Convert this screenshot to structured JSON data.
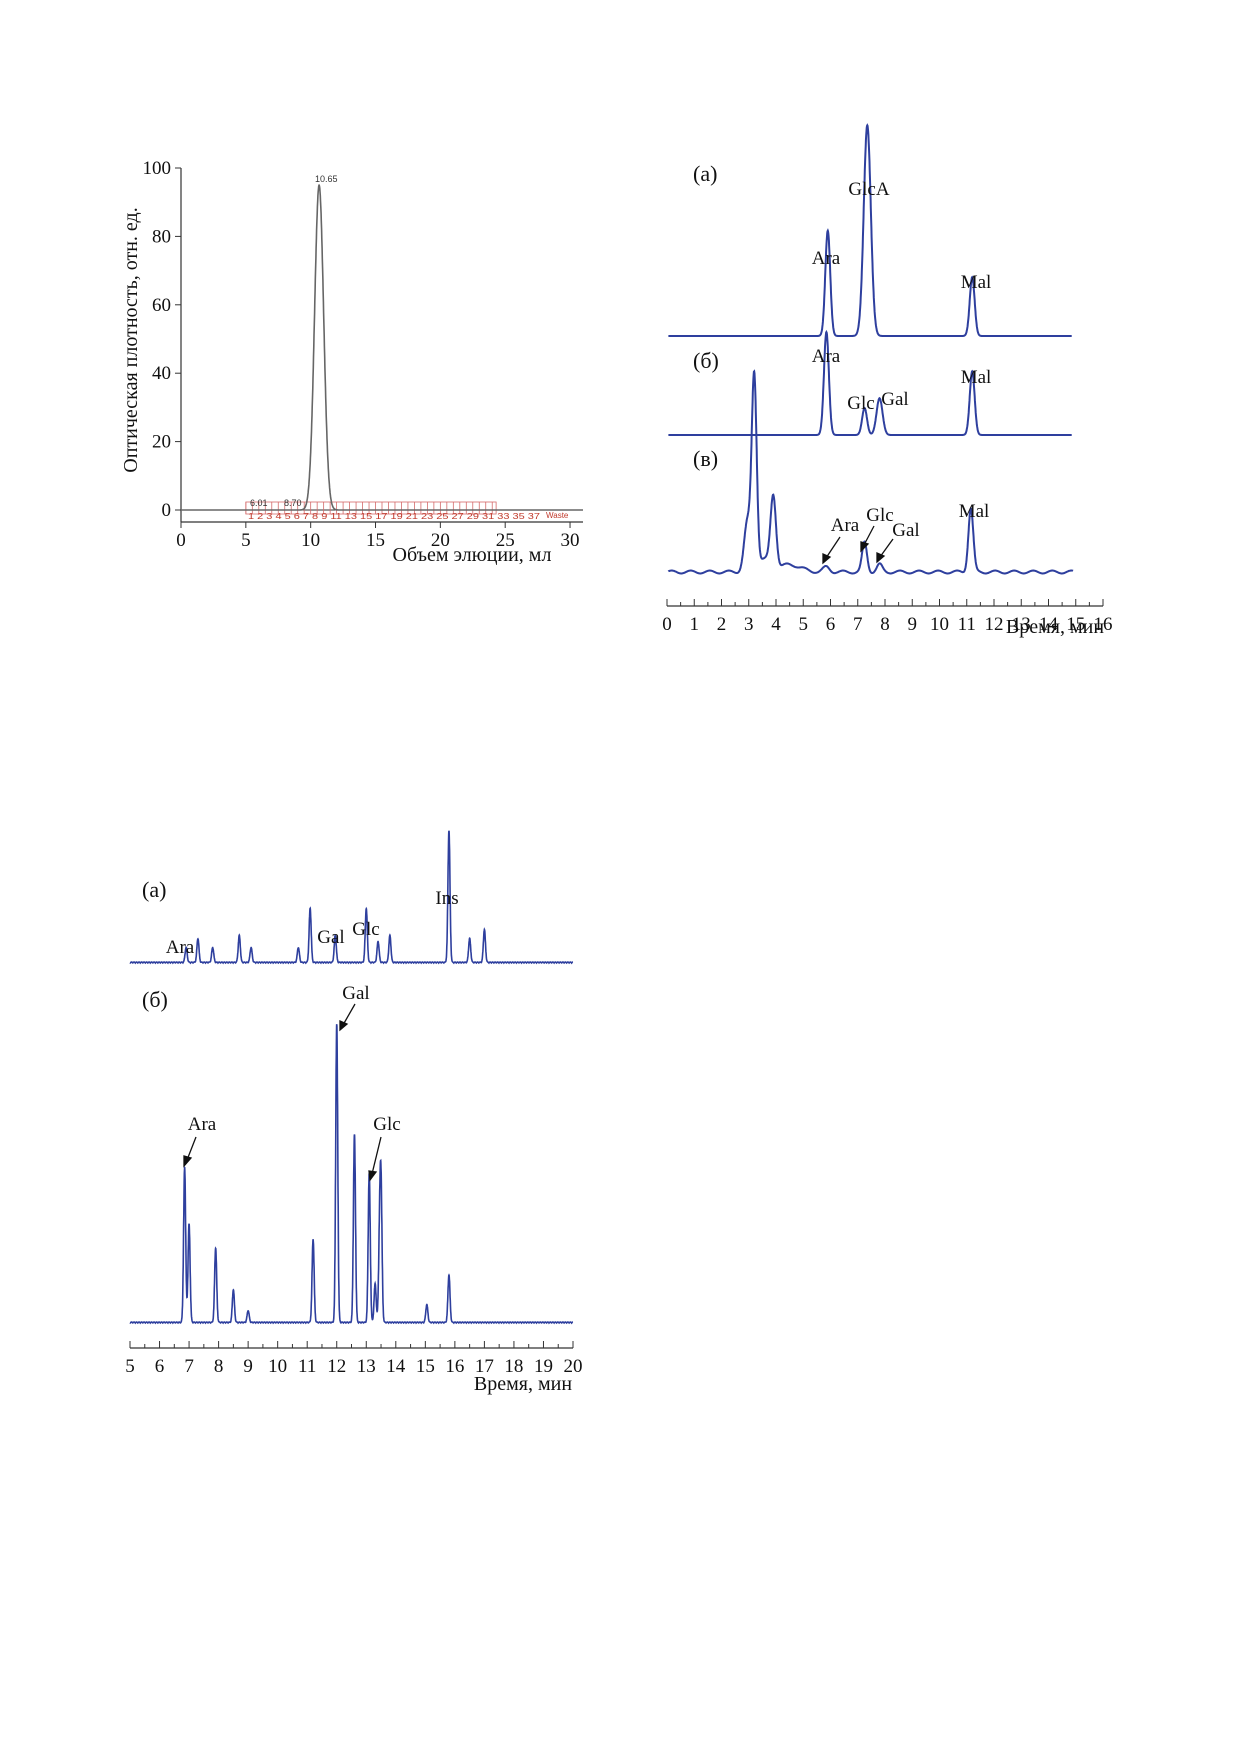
{
  "chart_data": [
    {
      "type": "line",
      "xlabel": "Объем элюции, мл",
      "ylabel": "Оптическая плотность, отн. ед.",
      "xlim": [
        0,
        31
      ],
      "ylim": [
        0,
        100
      ],
      "x_ticks": [
        "0",
        "5",
        "10",
        "15",
        "20",
        "25",
        "30"
      ],
      "y_ticks": [
        "0",
        "20",
        "40",
        "60",
        "80",
        "100"
      ],
      "peaks": [
        {
          "x": 10.65,
          "y": 95,
          "width": 0.35
        }
      ],
      "annotations": [
        "10.65",
        "6.01",
        "8.70",
        "Waste"
      ],
      "fraction_labels": "1 2 3 4 5 6 7 8 9 11 13 15 17 19 21 23 25 27 29 31 33 35 37",
      "line_color": "#666666"
    },
    {
      "type": "line",
      "xlabel": "Время, мин",
      "xlim": [
        0,
        16
      ],
      "x_ticks": [
        "0",
        "1",
        "2",
        "3",
        "4",
        "5",
        "6",
        "7",
        "8",
        "9",
        "10",
        "11",
        "12",
        "13",
        "14",
        "15",
        "16"
      ],
      "line_color": "#2e3f9e",
      "panels": [
        {
          "label": "(а)",
          "peaks": [
            {
              "name": "Ara",
              "x": 5.9,
              "height": 0.43
            },
            {
              "name": "GlcA",
              "x": 7.35,
              "height": 0.86
            },
            {
              "name": "Mal",
              "x": 11.2,
              "height": 0.24
            }
          ]
        },
        {
          "label": "(б)",
          "peaks": [
            {
              "name": "Ara",
              "x": 5.85,
              "height": 0.42
            },
            {
              "name": "Glc",
              "x": 7.25,
              "height": 0.11
            },
            {
              "name": "Gal",
              "x": 7.8,
              "height": 0.15
            },
            {
              "name": "Mal",
              "x": 11.2,
              "height": 0.26
            }
          ]
        },
        {
          "label": "(в)",
          "peaks": [
            {
              "name": "",
              "x": 3.2,
              "height": 0.78
            },
            {
              "name": "",
              "x": 3.9,
              "height": 0.29
            },
            {
              "name": "",
              "x": 2.95,
              "height": 0.2
            },
            {
              "name": "Ara",
              "x": 5.85,
              "height": 0.02
            },
            {
              "name": "Glc",
              "x": 7.25,
              "height": 0.12
            },
            {
              "name": "Gal",
              "x": 7.8,
              "height": 0.03
            },
            {
              "name": "Mal",
              "x": 11.15,
              "height": 0.26
            }
          ]
        }
      ]
    },
    {
      "type": "line",
      "xlabel": "Время, мин",
      "xlim": [
        5,
        20
      ],
      "x_ticks": [
        "5",
        "6",
        "7",
        "8",
        "9",
        "10",
        "11",
        "12",
        "13",
        "14",
        "15",
        "16",
        "17",
        "18",
        "19",
        "20"
      ],
      "line_color": "#2e3f9e",
      "panels": [
        {
          "label": "(а)",
          "peaks": [
            {
              "name": "Ara",
              "x": 6.9,
              "height": 0.05
            },
            {
              "name": "",
              "x": 7.3,
              "height": 0.08
            },
            {
              "name": "",
              "x": 7.8,
              "height": 0.05
            },
            {
              "name": "",
              "x": 8.7,
              "height": 0.09
            },
            {
              "name": "",
              "x": 9.1,
              "height": 0.05
            },
            {
              "name": "",
              "x": 10.7,
              "height": 0.05
            },
            {
              "name": "",
              "x": 11.1,
              "height": 0.18
            },
            {
              "name": "Gal",
              "x": 11.95,
              "height": 0.09
            },
            {
              "name": "Glc",
              "x": 13.0,
              "height": 0.18
            },
            {
              "name": "",
              "x": 13.4,
              "height": 0.07
            },
            {
              "name": "",
              "x": 13.8,
              "height": 0.09
            },
            {
              "name": "Ins",
              "x": 15.8,
              "height": 0.44
            },
            {
              "name": "",
              "x": 16.5,
              "height": 0.08
            },
            {
              "name": "",
              "x": 17.0,
              "height": 0.11
            }
          ]
        },
        {
          "label": "(б)",
          "peaks": [
            {
              "name": "Ara",
              "x": 6.85,
              "height": 0.52
            },
            {
              "name": "",
              "x": 7.0,
              "height": 0.33
            },
            {
              "name": "",
              "x": 7.9,
              "height": 0.25
            },
            {
              "name": "",
              "x": 8.5,
              "height": 0.11
            },
            {
              "name": "",
              "x": 9.0,
              "height": 0.04
            },
            {
              "name": "",
              "x": 11.2,
              "height": 0.28
            },
            {
              "name": "Gal",
              "x": 12.0,
              "height": 1.0
            },
            {
              "name": "",
              "x": 12.6,
              "height": 0.63
            },
            {
              "name": "Glc",
              "x": 13.1,
              "height": 0.5
            },
            {
              "name": "",
              "x": 13.3,
              "height": 0.13
            },
            {
              "name": "",
              "x": 13.5,
              "height": 0.43
            },
            {
              "name": "",
              "x": 13.45,
              "height": 0.25
            },
            {
              "name": "",
              "x": 15.05,
              "height": 0.06
            },
            {
              "name": "",
              "x": 15.8,
              "height": 0.16
            }
          ]
        }
      ]
    }
  ]
}
